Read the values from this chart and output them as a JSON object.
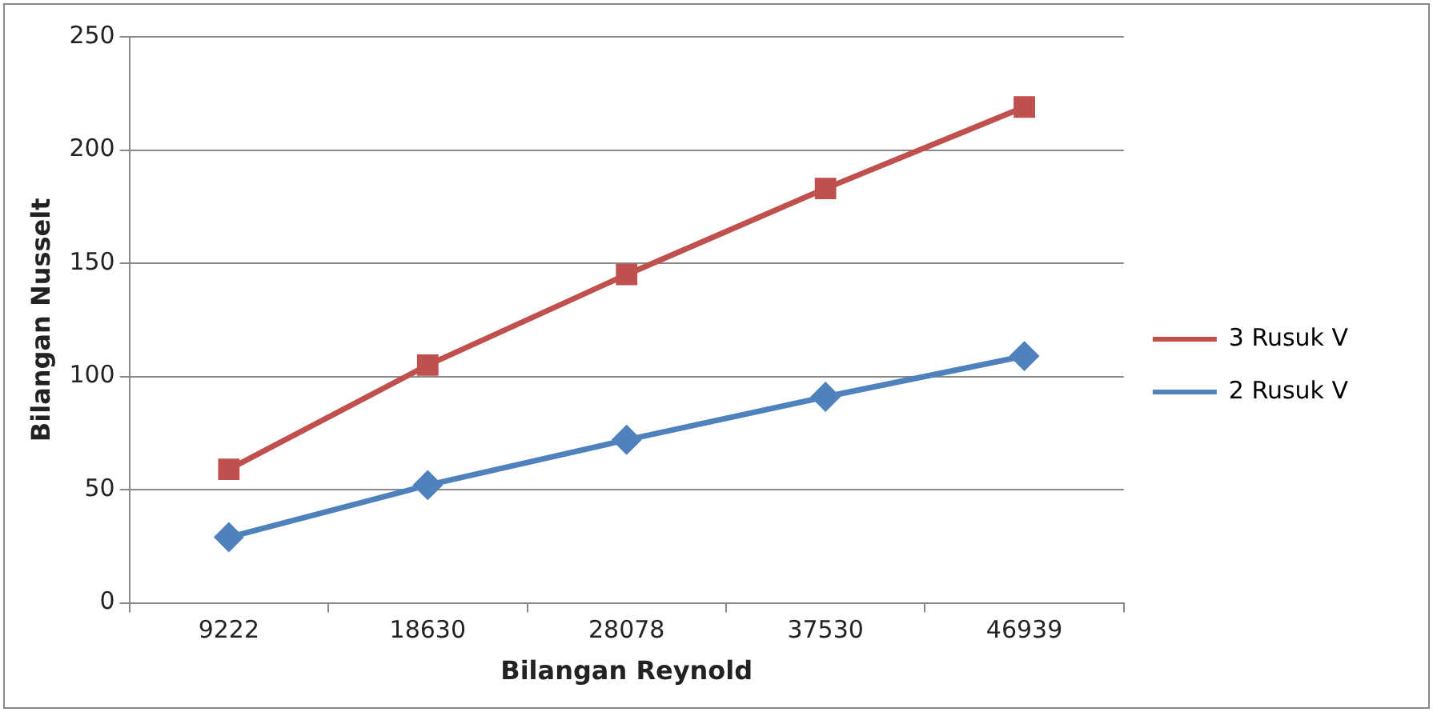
{
  "chart_data": {
    "type": "line",
    "xlabel": "Bilangan Reynold",
    "ylabel": "Bilangan Nusselt",
    "categories": [
      "9222",
      "18630",
      "28078",
      "37530",
      "46939"
    ],
    "series": [
      {
        "name": "3 Rusuk V",
        "color": "#c0504d",
        "marker": "square",
        "values": [
          59,
          105,
          145,
          183,
          219
        ]
      },
      {
        "name": "2 Rusuk V",
        "color": "#4f81bd",
        "marker": "diamond",
        "values": [
          29,
          52,
          72,
          91,
          109
        ]
      }
    ],
    "ylim": [
      0,
      250
    ],
    "yticks": [
      0,
      50,
      100,
      150,
      200,
      250
    ],
    "grid": "y",
    "legend": "right",
    "line_style": "solid"
  }
}
